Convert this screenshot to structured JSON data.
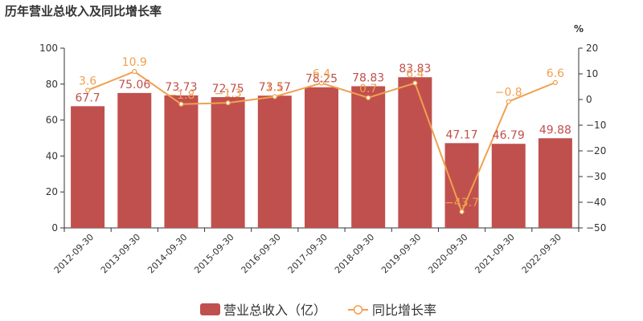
{
  "title": "历年营业总收入及同比增长率",
  "chart_data": {
    "type": "bar",
    "categories": [
      "2012-09-30",
      "2013-09-30",
      "2014-09-30",
      "2015-09-30",
      "2016-09-30",
      "2017-09-30",
      "2018-09-30",
      "2019-09-30",
      "2020-09-30",
      "2021-09-30",
      "2022-09-30"
    ],
    "series": [
      {
        "name": "营业总收入（亿）",
        "type": "bar",
        "axis": "left",
        "color": "#c0504d",
        "values": [
          67.7,
          75.06,
          73.73,
          72.75,
          73.57,
          78.25,
          78.83,
          83.83,
          47.17,
          46.79,
          49.88
        ],
        "labels": [
          "67.7",
          "75.06",
          "73.73",
          "72.75",
          "73.57",
          "78.25",
          "78.83",
          "83.83",
          "47.17",
          "46.79",
          "49.88"
        ]
      },
      {
        "name": "同比增长率",
        "type": "line",
        "axis": "right",
        "color": "#f0a050",
        "values": [
          3.6,
          10.9,
          -1.8,
          -1.3,
          1.1,
          6.4,
          0.7,
          6.4,
          -43.7,
          -0.8,
          6.6
        ],
        "labels": [
          "3.6",
          "10.9",
          "−1.8",
          "−1.3",
          "1.1",
          "6.4",
          "0.7",
          "6.4",
          "−43.7",
          "−0.8",
          "6.6"
        ]
      }
    ],
    "y_left": {
      "ylim": [
        0,
        100
      ],
      "ticks": [
        "0",
        "20",
        "40",
        "60",
        "80",
        "100"
      ]
    },
    "y_right": {
      "ylim": [
        -50,
        20
      ],
      "unit": "%",
      "ticks": [
        "20",
        "10",
        "0",
        "−10",
        "−20",
        "−30",
        "−40",
        "−50"
      ]
    },
    "grid": false,
    "legend_position": "bottom-center"
  }
}
